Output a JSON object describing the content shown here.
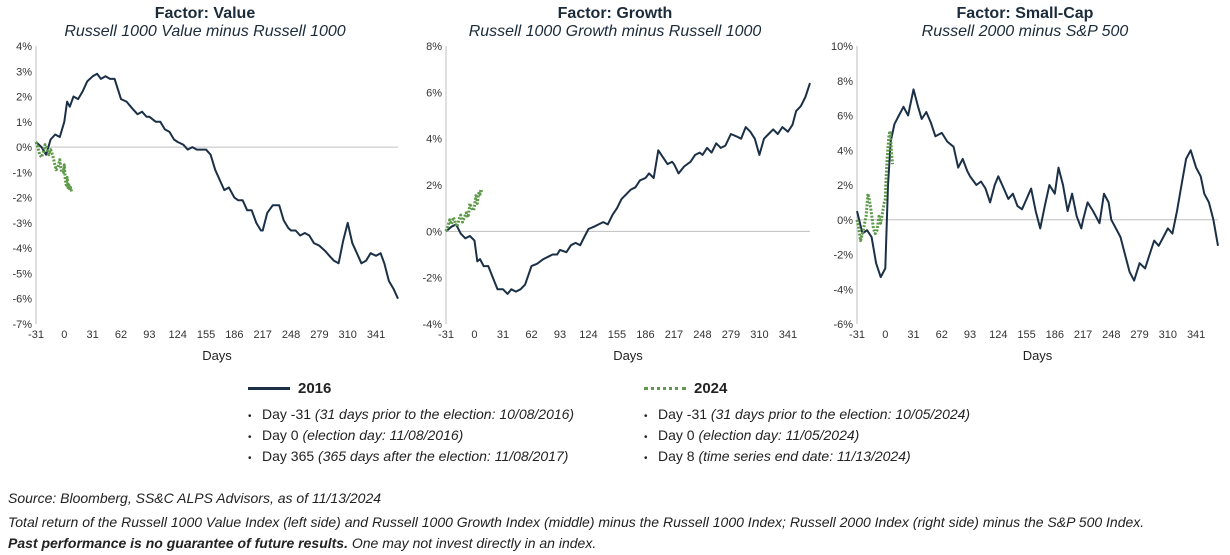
{
  "charts": [
    {
      "title": "Factor: Value",
      "subtitle": "Russell 1000 Value minus Russell 1000",
      "xlabel": "Days",
      "x_ticks": [
        "-31",
        "0",
        "31",
        "62",
        "93",
        "124",
        "155",
        "186",
        "217",
        "248",
        "279",
        "310",
        "341"
      ],
      "y_ticks": [
        "4%",
        "3%",
        "2%",
        "1%",
        "0%",
        "-1%",
        "-2%",
        "-3%",
        "-4%",
        "-5%",
        "-6%",
        "-7%"
      ]
    },
    {
      "title": "Factor: Growth",
      "subtitle": "Russell 1000 Growth minus Russell 1000",
      "xlabel": "Days",
      "x_ticks": [
        "-31",
        "0",
        "31",
        "62",
        "93",
        "124",
        "155",
        "186",
        "217",
        "248",
        "279",
        "310",
        "341"
      ],
      "y_ticks": [
        "8%",
        "6%",
        "4%",
        "2%",
        "0%",
        "-2%",
        "-4%"
      ]
    },
    {
      "title": "Factor: Small-Cap",
      "subtitle": "Russell 2000 minus S&P 500",
      "xlabel": "Days",
      "x_ticks": [
        "-31",
        "0",
        "31",
        "62",
        "93",
        "124",
        "155",
        "186",
        "217",
        "248",
        "279",
        "310",
        "341"
      ],
      "y_ticks": [
        "10%",
        "8%",
        "6%",
        "4%",
        "2%",
        "0%",
        "-2%",
        "-4%",
        "-6%"
      ]
    }
  ],
  "chart_data": [
    {
      "type": "line",
      "title": "Factor: Value",
      "subtitle": "Russell 1000 Value minus Russell 1000",
      "xlabel": "Days",
      "ylabel": "",
      "xlim": [
        -31,
        365
      ],
      "ylim": [
        -7,
        4
      ],
      "series": [
        {
          "name": "2016",
          "color": "#1b3047",
          "x": [
            -31,
            -25,
            -20,
            -15,
            -10,
            -5,
            0,
            3,
            6,
            10,
            15,
            20,
            25,
            31,
            36,
            40,
            45,
            50,
            55,
            62,
            68,
            75,
            80,
            85,
            90,
            93,
            100,
            105,
            110,
            115,
            120,
            124,
            130,
            135,
            140,
            145,
            150,
            155,
            160,
            165,
            170,
            175,
            180,
            186,
            190,
            195,
            200,
            205,
            210,
            215,
            217,
            222,
            228,
            235,
            240,
            245,
            248,
            253,
            258,
            263,
            268,
            273,
            279,
            285,
            290,
            295,
            300,
            305,
            310,
            315,
            320,
            325,
            330,
            335,
            341,
            346,
            350,
            355,
            360,
            365
          ],
          "y": [
            0.2,
            0.0,
            -0.3,
            0.3,
            0.5,
            0.4,
            1.0,
            1.8,
            1.6,
            2.0,
            1.9,
            2.2,
            2.6,
            2.8,
            2.9,
            2.7,
            2.8,
            2.7,
            2.7,
            1.9,
            1.8,
            1.5,
            1.3,
            1.4,
            1.2,
            1.2,
            1.0,
            1.0,
            0.7,
            0.6,
            0.3,
            0.2,
            0.1,
            -0.1,
            0.0,
            -0.1,
            -0.1,
            -0.1,
            -0.3,
            -0.9,
            -1.3,
            -1.7,
            -1.6,
            -2.0,
            -2.1,
            -2.1,
            -2.5,
            -2.5,
            -3.0,
            -3.3,
            -3.3,
            -2.6,
            -2.3,
            -2.3,
            -2.9,
            -3.2,
            -3.3,
            -3.3,
            -3.5,
            -3.4,
            -3.5,
            -3.8,
            -3.9,
            -4.1,
            -4.3,
            -4.5,
            -4.6,
            -3.7,
            -3.0,
            -3.8,
            -4.2,
            -4.6,
            -4.5,
            -4.2,
            -4.3,
            -4.2,
            -4.6,
            -5.3,
            -5.6,
            -6.0
          ]
        },
        {
          "name": "2024",
          "color": "#5e9a4a",
          "x": [
            -31,
            -29,
            -27,
            -25,
            -23,
            -21,
            -19,
            -17,
            -15,
            -13,
            -11,
            -9,
            -7,
            -5,
            -3,
            -1,
            0,
            1,
            2,
            3,
            4,
            5,
            6,
            7,
            8
          ],
          "y": [
            0.2,
            0.0,
            -0.3,
            -0.4,
            -0.2,
            0.1,
            -0.1,
            -0.3,
            -0.1,
            -0.3,
            -0.6,
            -0.9,
            -0.8,
            -0.5,
            -1.0,
            -1.0,
            -0.7,
            -1.3,
            -1.5,
            -1.2,
            -1.6,
            -1.5,
            -1.7,
            -1.6,
            -1.8
          ]
        }
      ]
    },
    {
      "type": "line",
      "title": "Factor: Growth",
      "subtitle": "Russell 1000 Growth minus Russell 1000",
      "xlabel": "Days",
      "ylabel": "",
      "xlim": [
        -31,
        365
      ],
      "ylim": [
        -4,
        8
      ],
      "series": [
        {
          "name": "2016",
          "color": "#1b3047",
          "x": [
            -31,
            -25,
            -20,
            -15,
            -10,
            -5,
            0,
            3,
            6,
            10,
            15,
            20,
            25,
            31,
            36,
            40,
            45,
            50,
            55,
            62,
            68,
            75,
            80,
            85,
            90,
            93,
            100,
            105,
            110,
            115,
            120,
            124,
            130,
            135,
            140,
            145,
            150,
            155,
            160,
            165,
            170,
            175,
            180,
            186,
            190,
            195,
            200,
            205,
            210,
            215,
            217,
            222,
            228,
            235,
            240,
            245,
            248,
            253,
            258,
            263,
            268,
            273,
            279,
            285,
            290,
            295,
            300,
            305,
            310,
            315,
            320,
            325,
            330,
            335,
            341,
            346,
            350,
            355,
            360,
            365
          ],
          "y": [
            0.0,
            0.2,
            0.3,
            -0.1,
            -0.3,
            -0.2,
            -0.4,
            -1.3,
            -1.2,
            -1.5,
            -1.5,
            -2.0,
            -2.5,
            -2.5,
            -2.7,
            -2.5,
            -2.6,
            -2.5,
            -2.3,
            -1.5,
            -1.4,
            -1.2,
            -1.1,
            -1.0,
            -1.0,
            -0.8,
            -0.9,
            -0.6,
            -0.5,
            -0.6,
            -0.2,
            0.1,
            0.2,
            0.3,
            0.4,
            0.3,
            0.7,
            1.0,
            1.4,
            1.6,
            1.8,
            1.9,
            2.2,
            2.3,
            2.5,
            2.3,
            3.5,
            3.2,
            2.9,
            3.0,
            2.9,
            2.5,
            2.8,
            3.0,
            3.3,
            3.4,
            3.3,
            3.6,
            3.4,
            3.8,
            3.6,
            3.7,
            4.2,
            4.1,
            4.0,
            4.5,
            4.3,
            4.0,
            3.3,
            4.0,
            4.2,
            4.4,
            4.2,
            4.5,
            4.3,
            4.6,
            5.2,
            5.4,
            5.8,
            6.4
          ]
        },
        {
          "name": "2024",
          "color": "#5e9a4a",
          "x": [
            -31,
            -29,
            -27,
            -25,
            -23,
            -21,
            -19,
            -17,
            -15,
            -13,
            -11,
            -9,
            -7,
            -5,
            -3,
            -1,
            0,
            1,
            2,
            3,
            4,
            5,
            6,
            7,
            8
          ],
          "y": [
            0.0,
            0.2,
            0.5,
            0.3,
            0.6,
            0.4,
            0.2,
            0.5,
            0.7,
            0.4,
            0.6,
            0.8,
            0.6,
            1.2,
            1.0,
            0.9,
            1.1,
            1.4,
            1.6,
            1.2,
            1.5,
            1.7,
            1.6,
            1.8,
            1.7
          ]
        }
      ]
    },
    {
      "type": "line",
      "title": "Factor: Small-Cap",
      "subtitle": "Russell 2000 minus S&P 500",
      "xlabel": "Days",
      "ylabel": "",
      "xlim": [
        -31,
        365
      ],
      "ylim": [
        -6,
        10
      ],
      "series": [
        {
          "name": "2016",
          "color": "#1b3047",
          "x": [
            -31,
            -25,
            -20,
            -15,
            -10,
            -5,
            0,
            3,
            6,
            10,
            15,
            20,
            25,
            31,
            36,
            40,
            45,
            50,
            55,
            62,
            68,
            75,
            80,
            85,
            90,
            93,
            100,
            105,
            110,
            115,
            120,
            124,
            130,
            135,
            140,
            145,
            150,
            155,
            160,
            165,
            170,
            175,
            180,
            186,
            190,
            195,
            200,
            205,
            210,
            215,
            217,
            222,
            228,
            235,
            240,
            245,
            248,
            253,
            258,
            263,
            268,
            273,
            279,
            285,
            290,
            295,
            300,
            305,
            310,
            315,
            320,
            325,
            330,
            335,
            341,
            346,
            350,
            355,
            360,
            365
          ],
          "y": [
            0.5,
            -0.8,
            -0.6,
            -1.0,
            -2.5,
            -3.3,
            -2.8,
            2.0,
            4.5,
            5.5,
            6.0,
            6.5,
            6.0,
            7.5,
            6.5,
            5.8,
            6.2,
            5.6,
            4.8,
            5.0,
            4.5,
            4.2,
            3.0,
            3.5,
            2.8,
            2.5,
            2.0,
            2.2,
            1.8,
            1.0,
            2.0,
            2.5,
            1.8,
            1.2,
            1.5,
            0.8,
            0.6,
            1.2,
            1.8,
            0.5,
            -0.5,
            0.8,
            2.0,
            1.5,
            3.0,
            2.0,
            0.5,
            1.5,
            0.2,
            -0.5,
            0.0,
            1.0,
            0.5,
            -0.2,
            1.5,
            1.0,
            0.0,
            -0.5,
            -1.0,
            -2.0,
            -3.0,
            -3.5,
            -2.5,
            -2.8,
            -2.0,
            -1.2,
            -1.5,
            -1.0,
            -0.5,
            -0.8,
            0.5,
            2.0,
            3.5,
            4.0,
            3.0,
            2.5,
            1.5,
            1.0,
            0.0,
            -1.5
          ]
        },
        {
          "name": "2024",
          "color": "#5e9a4a",
          "x": [
            -31,
            -29,
            -27,
            -25,
            -23,
            -21,
            -19,
            -17,
            -15,
            -13,
            -11,
            -9,
            -7,
            -5,
            -3,
            -1,
            0,
            1,
            2,
            3,
            4,
            5,
            6,
            7,
            8
          ],
          "y": [
            0.0,
            -0.5,
            -1.2,
            -0.8,
            -0.3,
            0.2,
            1.5,
            1.0,
            0.3,
            -0.5,
            -0.8,
            -0.6,
            0.2,
            -0.2,
            0.4,
            1.0,
            1.2,
            2.5,
            3.5,
            4.2,
            4.8,
            5.1,
            4.6,
            3.8,
            3.2
          ]
        }
      ]
    }
  ],
  "legend": {
    "left": {
      "label": "2016",
      "notes": [
        {
          "head": "Day -31",
          "detail": "(31 days prior to the election: 10/08/2016)"
        },
        {
          "head": "Day 0",
          "detail": "(election day: 11/08/2016)"
        },
        {
          "head": "Day 365",
          "detail": "(365 days after the election: 11/08/2017)"
        }
      ]
    },
    "right": {
      "label": "2024",
      "notes": [
        {
          "head": "Day -31",
          "detail": "(31 days prior to the election: 10/05/2024)"
        },
        {
          "head": "Day 0",
          "detail": "(election day: 11/05/2024)"
        },
        {
          "head": "Day 8",
          "detail": "(time series end date: 11/13/2024)"
        }
      ]
    }
  },
  "footer": {
    "source": "Source: Bloomberg, SS&C ALPS Advisors, as of 11/13/2024",
    "note": "Total return of the Russell 1000 Value Index (left side) and Russell 1000 Growth Index (middle) minus the Russell 1000 Index; Russell 2000 Index (right side) minus the S&P 500 Index.",
    "disclaimer_bold": "Past performance is no guarantee of future results.",
    "disclaimer_rest": " One may not invest directly in an index."
  },
  "colors": {
    "line_2016": "#1b3047",
    "line_2024": "#5e9a4a",
    "zero_line": "#bfbfbf"
  }
}
